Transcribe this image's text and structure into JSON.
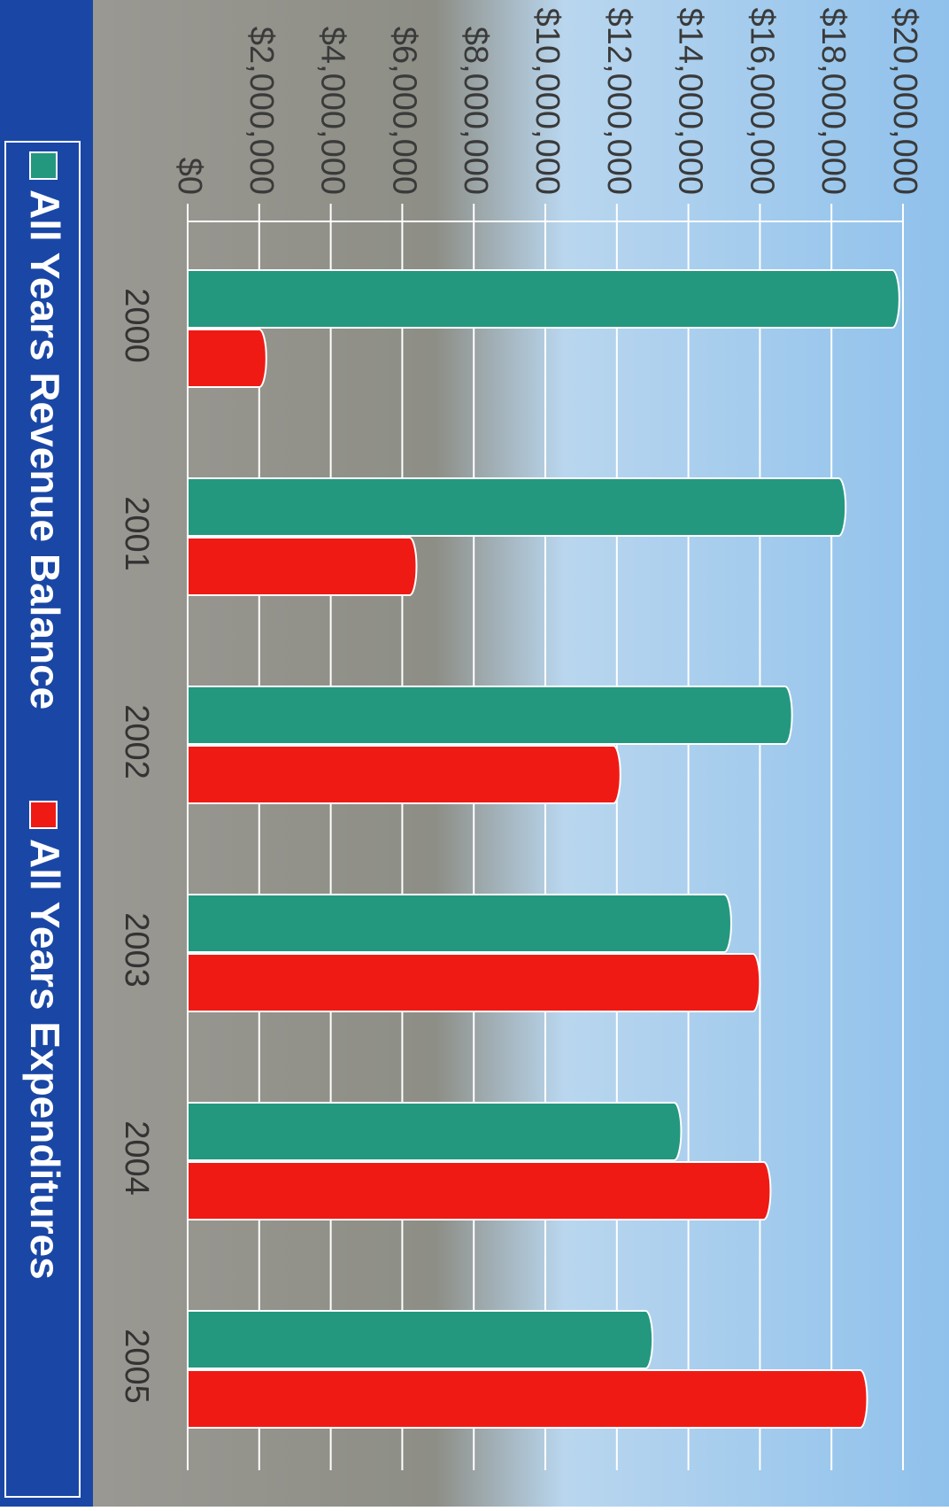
{
  "chart_data": {
    "type": "bar",
    "categories": [
      "2000",
      "2001",
      "2002",
      "2003",
      "2004",
      "2005"
    ],
    "series": [
      {
        "name": "All Years Revenue Balance",
        "color": "#23987f",
        "values": [
          19700000,
          18200000,
          16700000,
          15000000,
          13600000,
          12800000
        ]
      },
      {
        "name": "All Years Expenditures",
        "color": "#f01a14",
        "values": [
          2000000,
          6200000,
          11900000,
          15800000,
          16100000,
          18800000
        ]
      }
    ],
    "ylim": [
      0,
      20000000
    ],
    "yticks": [
      {
        "value": 0,
        "label": "$0"
      },
      {
        "value": 2000000,
        "label": "$2,000,000"
      },
      {
        "value": 4000000,
        "label": "$4,000,000"
      },
      {
        "value": 6000000,
        "label": "$6,000,000"
      },
      {
        "value": 8000000,
        "label": "$8,000,000"
      },
      {
        "value": 10000000,
        "label": "$10,000,000"
      },
      {
        "value": 12000000,
        "label": "$12,000,000"
      },
      {
        "value": 14000000,
        "label": "$14,000,000"
      },
      {
        "value": 16000000,
        "label": "$16,000,000"
      },
      {
        "value": 18000000,
        "label": "$18,000,000"
      },
      {
        "value": 20000000,
        "label": "$20,000,000"
      }
    ],
    "grid": true,
    "legend": "bottom",
    "rotation": 90
  }
}
